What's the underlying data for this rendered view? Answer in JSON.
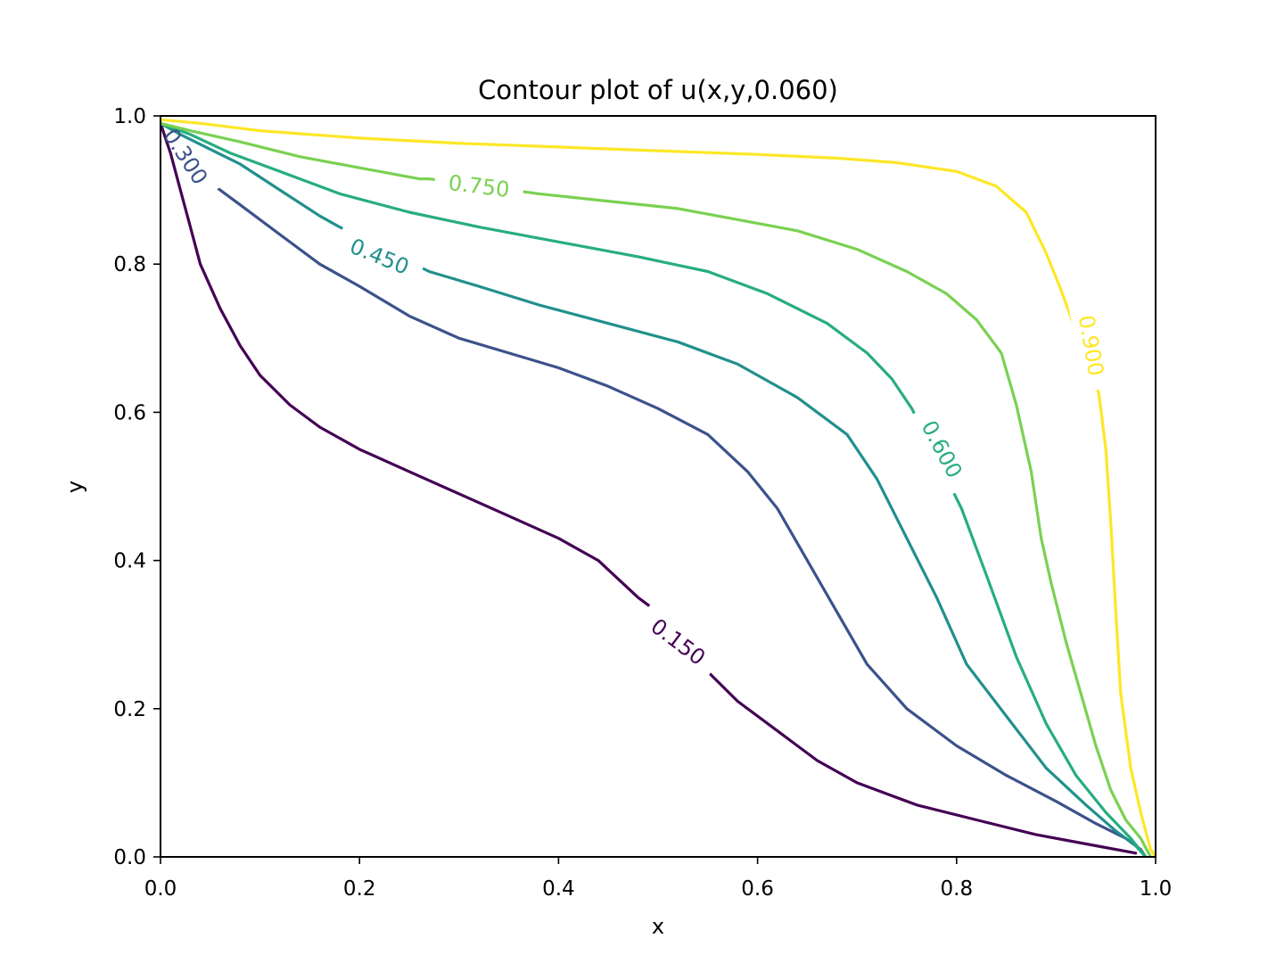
{
  "chart_data": {
    "type": "contour",
    "title": "Contour plot of u(x,y,0.060)",
    "xlabel": "x",
    "ylabel": "y",
    "xlim": [
      0.0,
      1.0
    ],
    "ylim": [
      0.0,
      1.0
    ],
    "xticks": [
      "0.0",
      "0.2",
      "0.4",
      "0.6",
      "0.8",
      "1.0"
    ],
    "yticks": [
      "0.0",
      "0.2",
      "0.4",
      "0.6",
      "0.8",
      "1.0"
    ],
    "grid": false,
    "colormap": "viridis",
    "levels": [
      {
        "level": 0.15,
        "label": "0.150",
        "color": "#440154",
        "label_at": [
          0.52,
          0.29
        ],
        "label_angle": 37,
        "points": [
          [
            0.0,
            0.99
          ],
          [
            0.01,
            0.95
          ],
          [
            0.02,
            0.9
          ],
          [
            0.03,
            0.85
          ],
          [
            0.04,
            0.8
          ],
          [
            0.06,
            0.74
          ],
          [
            0.08,
            0.69
          ],
          [
            0.1,
            0.65
          ],
          [
            0.13,
            0.61
          ],
          [
            0.16,
            0.58
          ],
          [
            0.2,
            0.55
          ],
          [
            0.25,
            0.52
          ],
          [
            0.3,
            0.49
          ],
          [
            0.35,
            0.46
          ],
          [
            0.4,
            0.43
          ],
          [
            0.44,
            0.4
          ],
          [
            0.48,
            0.35
          ],
          [
            0.5,
            0.33
          ],
          [
            0.55,
            0.25
          ],
          [
            0.58,
            0.21
          ],
          [
            0.62,
            0.17
          ],
          [
            0.66,
            0.13
          ],
          [
            0.7,
            0.1
          ],
          [
            0.76,
            0.07
          ],
          [
            0.82,
            0.05
          ],
          [
            0.88,
            0.03
          ],
          [
            0.94,
            0.015
          ],
          [
            0.98,
            0.005
          ]
        ]
      },
      {
        "level": 0.3,
        "label": "0.300",
        "color": "#3b528b",
        "label_at": [
          0.025,
          0.945
        ],
        "label_angle": 57,
        "points": [
          [
            0.0,
            0.99
          ],
          [
            0.01,
            0.975
          ],
          [
            0.02,
            0.96
          ],
          [
            0.03,
            0.935
          ],
          [
            0.05,
            0.91
          ],
          [
            0.08,
            0.88
          ],
          [
            0.12,
            0.84
          ],
          [
            0.16,
            0.8
          ],
          [
            0.2,
            0.77
          ],
          [
            0.25,
            0.73
          ],
          [
            0.3,
            0.7
          ],
          [
            0.35,
            0.68
          ],
          [
            0.4,
            0.66
          ],
          [
            0.45,
            0.635
          ],
          [
            0.5,
            0.605
          ],
          [
            0.55,
            0.57
          ],
          [
            0.59,
            0.52
          ],
          [
            0.62,
            0.47
          ],
          [
            0.65,
            0.4
          ],
          [
            0.68,
            0.33
          ],
          [
            0.71,
            0.26
          ],
          [
            0.75,
            0.2
          ],
          [
            0.8,
            0.15
          ],
          [
            0.85,
            0.11
          ],
          [
            0.9,
            0.075
          ],
          [
            0.94,
            0.045
          ],
          [
            0.97,
            0.025
          ],
          [
            0.985,
            0.01
          ],
          [
            0.99,
            0.0
          ]
        ]
      },
      {
        "level": 0.45,
        "label": "0.450",
        "color": "#21908d",
        "label_at": [
          0.22,
          0.81
        ],
        "label_angle": 22,
        "points": [
          [
            0.0,
            0.99
          ],
          [
            0.02,
            0.975
          ],
          [
            0.05,
            0.955
          ],
          [
            0.08,
            0.935
          ],
          [
            0.12,
            0.9
          ],
          [
            0.16,
            0.865
          ],
          [
            0.18,
            0.85
          ],
          [
            0.27,
            0.79
          ],
          [
            0.32,
            0.77
          ],
          [
            0.38,
            0.745
          ],
          [
            0.45,
            0.72
          ],
          [
            0.52,
            0.695
          ],
          [
            0.58,
            0.665
          ],
          [
            0.64,
            0.62
          ],
          [
            0.69,
            0.57
          ],
          [
            0.72,
            0.51
          ],
          [
            0.75,
            0.43
          ],
          [
            0.78,
            0.35
          ],
          [
            0.81,
            0.26
          ],
          [
            0.85,
            0.19
          ],
          [
            0.89,
            0.12
          ],
          [
            0.93,
            0.07
          ],
          [
            0.96,
            0.035
          ],
          [
            0.98,
            0.015
          ],
          [
            0.99,
            0.0
          ]
        ]
      },
      {
        "level": 0.6,
        "label": "0.600",
        "color": "#27ad81",
        "label_at": [
          0.785,
          0.55
        ],
        "label_angle": 62,
        "points": [
          [
            0.0,
            0.99
          ],
          [
            0.03,
            0.975
          ],
          [
            0.07,
            0.95
          ],
          [
            0.12,
            0.925
          ],
          [
            0.18,
            0.895
          ],
          [
            0.25,
            0.87
          ],
          [
            0.32,
            0.85
          ],
          [
            0.4,
            0.83
          ],
          [
            0.48,
            0.81
          ],
          [
            0.55,
            0.79
          ],
          [
            0.61,
            0.76
          ],
          [
            0.67,
            0.72
          ],
          [
            0.71,
            0.68
          ],
          [
            0.735,
            0.645
          ],
          [
            0.755,
            0.605
          ],
          [
            0.805,
            0.47
          ],
          [
            0.83,
            0.38
          ],
          [
            0.86,
            0.27
          ],
          [
            0.89,
            0.18
          ],
          [
            0.92,
            0.11
          ],
          [
            0.95,
            0.06
          ],
          [
            0.975,
            0.025
          ],
          [
            0.99,
            0.0
          ]
        ]
      },
      {
        "level": 0.75,
        "label": "0.750",
        "color": "#7ad151",
        "label_at": [
          0.32,
          0.905
        ],
        "label_angle": 7,
        "points": [
          [
            0.0,
            0.99
          ],
          [
            0.03,
            0.98
          ],
          [
            0.08,
            0.965
          ],
          [
            0.14,
            0.945
          ],
          [
            0.2,
            0.93
          ],
          [
            0.26,
            0.915
          ],
          [
            0.27,
            0.915
          ],
          [
            0.38,
            0.895
          ],
          [
            0.45,
            0.885
          ],
          [
            0.52,
            0.875
          ],
          [
            0.58,
            0.86
          ],
          [
            0.64,
            0.845
          ],
          [
            0.7,
            0.82
          ],
          [
            0.75,
            0.79
          ],
          [
            0.79,
            0.76
          ],
          [
            0.82,
            0.725
          ],
          [
            0.845,
            0.68
          ],
          [
            0.86,
            0.61
          ],
          [
            0.875,
            0.52
          ],
          [
            0.885,
            0.43
          ],
          [
            0.895,
            0.37
          ],
          [
            0.91,
            0.29
          ],
          [
            0.925,
            0.22
          ],
          [
            0.94,
            0.15
          ],
          [
            0.955,
            0.09
          ],
          [
            0.97,
            0.05
          ],
          [
            0.985,
            0.025
          ],
          [
            0.995,
            0.0
          ]
        ]
      },
      {
        "level": 0.9,
        "label": "0.900",
        "color": "#fde725",
        "label_at": [
          0.935,
          0.69
        ],
        "label_angle": 80,
        "points": [
          [
            0.0,
            0.995
          ],
          [
            0.04,
            0.99
          ],
          [
            0.1,
            0.98
          ],
          [
            0.2,
            0.97
          ],
          [
            0.3,
            0.963
          ],
          [
            0.4,
            0.958
          ],
          [
            0.5,
            0.953
          ],
          [
            0.6,
            0.948
          ],
          [
            0.68,
            0.943
          ],
          [
            0.74,
            0.937
          ],
          [
            0.8,
            0.925
          ],
          [
            0.84,
            0.905
          ],
          [
            0.87,
            0.87
          ],
          [
            0.89,
            0.815
          ],
          [
            0.905,
            0.765
          ],
          [
            0.943,
            0.625
          ],
          [
            0.95,
            0.55
          ],
          [
            0.955,
            0.45
          ],
          [
            0.96,
            0.33
          ],
          [
            0.965,
            0.22
          ],
          [
            0.975,
            0.12
          ],
          [
            0.985,
            0.06
          ],
          [
            0.995,
            0.01
          ],
          [
            1.0,
            0.0
          ]
        ]
      }
    ]
  }
}
